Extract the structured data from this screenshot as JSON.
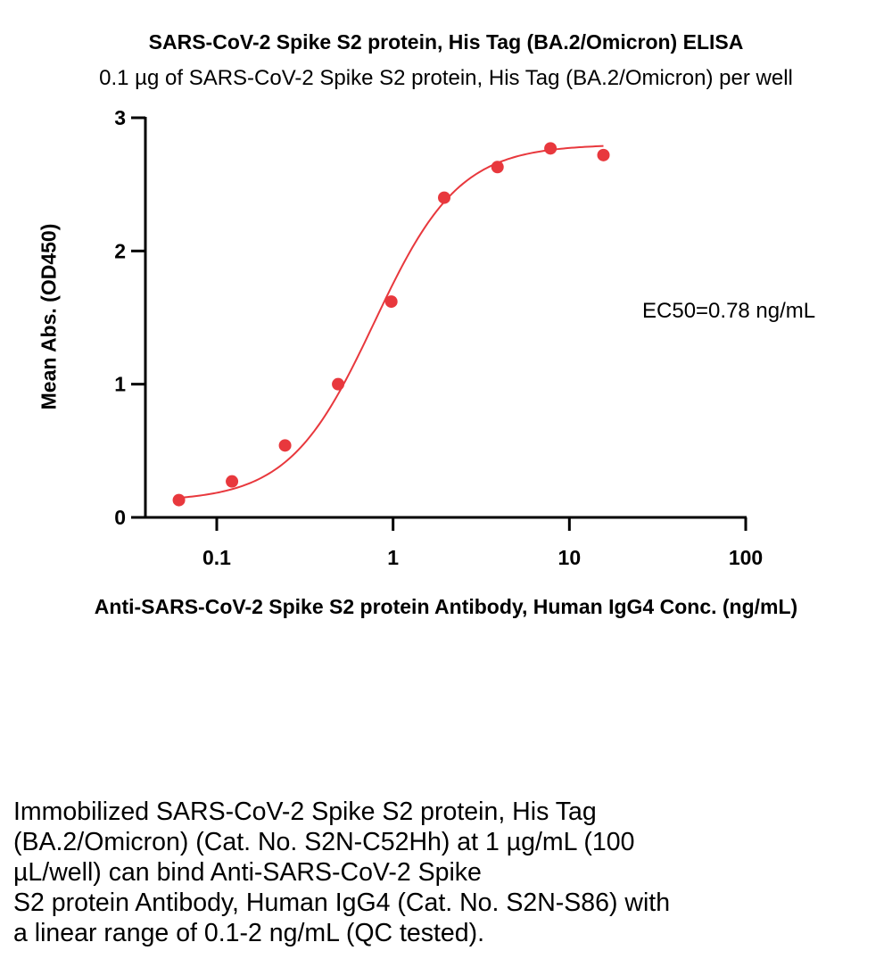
{
  "chart_data": {
    "type": "scatter",
    "title": "SARS-CoV-2 Spike S2 protein, His Tag (BA.2/Omicron) ELISA",
    "subtitle": "0.1 µg of SARS-CoV-2 Spike S2 protein, His Tag (BA.2/Omicron) per well",
    "xlabel": "Anti-SARS-CoV-2 Spike S2 protein Antibody, Human IgG4 Conc. (ng/mL)",
    "ylabel": "Mean Abs. (OD450)",
    "x_scale": "log",
    "xlim": [
      0.05,
      100
    ],
    "ylim": [
      0,
      3
    ],
    "x_ticks": [
      0.1,
      1,
      10,
      100
    ],
    "x_tick_labels": [
      "0.1",
      "1",
      "10",
      "100"
    ],
    "y_ticks": [
      0,
      1,
      2,
      3
    ],
    "y_tick_labels": [
      "0",
      "1",
      "2",
      "3"
    ],
    "series": [
      {
        "x": [
          0.061,
          0.122,
          0.244,
          0.488,
          0.977,
          1.95,
          3.91,
          7.81,
          15.6
        ],
        "y": [
          0.13,
          0.27,
          0.54,
          1.0,
          1.62,
          2.4,
          2.63,
          2.77,
          2.72
        ],
        "color": "#e8383d"
      }
    ],
    "fit_curve": {
      "model": "4PL",
      "bottom": 0.12,
      "top": 2.8,
      "ec50": 0.78,
      "hill": 1.8,
      "x_range": [
        0.061,
        15.6
      ],
      "color": "#e8383d"
    },
    "annotation": "EC50=0.78 ng/mL",
    "grid": false,
    "legend": "none"
  },
  "description": "Immobilized SARS-CoV-2 Spike S2 protein, His Tag\n(BA.2/Omicron) (Cat. No. S2N-C52Hh) at 1 µg/mL (100\nµL/well) can bind Anti-SARS-CoV-2 Spike\nS2 protein Antibody, Human IgG4 (Cat. No. S2N-S86) with\na linear range of 0.1-2 ng/mL (QC tested)."
}
